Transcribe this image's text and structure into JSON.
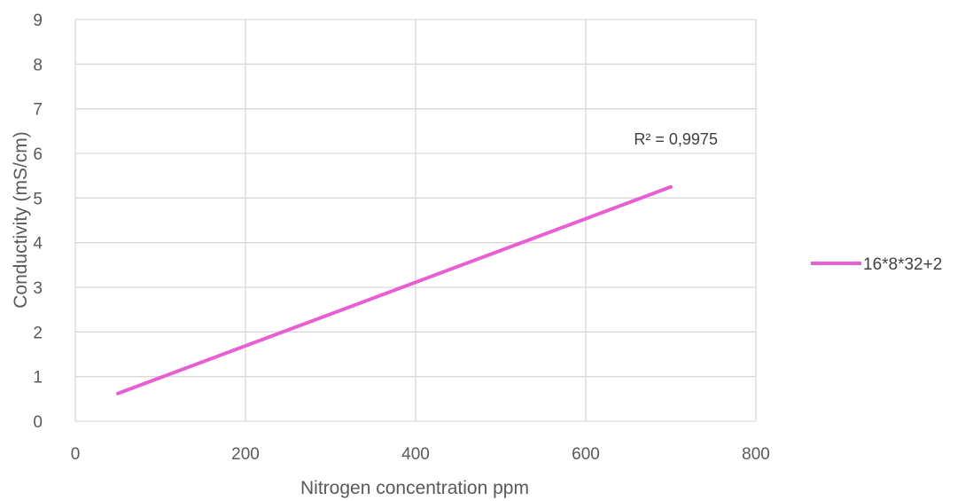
{
  "chart_data": {
    "type": "line",
    "title": "",
    "xlabel": "Nitrogen concentration ppm",
    "ylabel": "Conductivity (mS/cm)",
    "xlim": [
      0,
      800
    ],
    "ylim": [
      0,
      9
    ],
    "x_ticks": [
      0,
      200,
      400,
      600,
      800
    ],
    "y_ticks": [
      0,
      1,
      2,
      3,
      4,
      5,
      6,
      7,
      8,
      9
    ],
    "grid": true,
    "legend_position": "right",
    "series": [
      {
        "name": "16*8*32+2",
        "color": "#e85fd3",
        "points": [
          [
            50,
            0.62
          ],
          [
            700,
            5.25
          ]
        ]
      }
    ],
    "annotations": [
      {
        "text": "R² = 0,9975",
        "x": 640,
        "y": 6.3
      }
    ]
  }
}
